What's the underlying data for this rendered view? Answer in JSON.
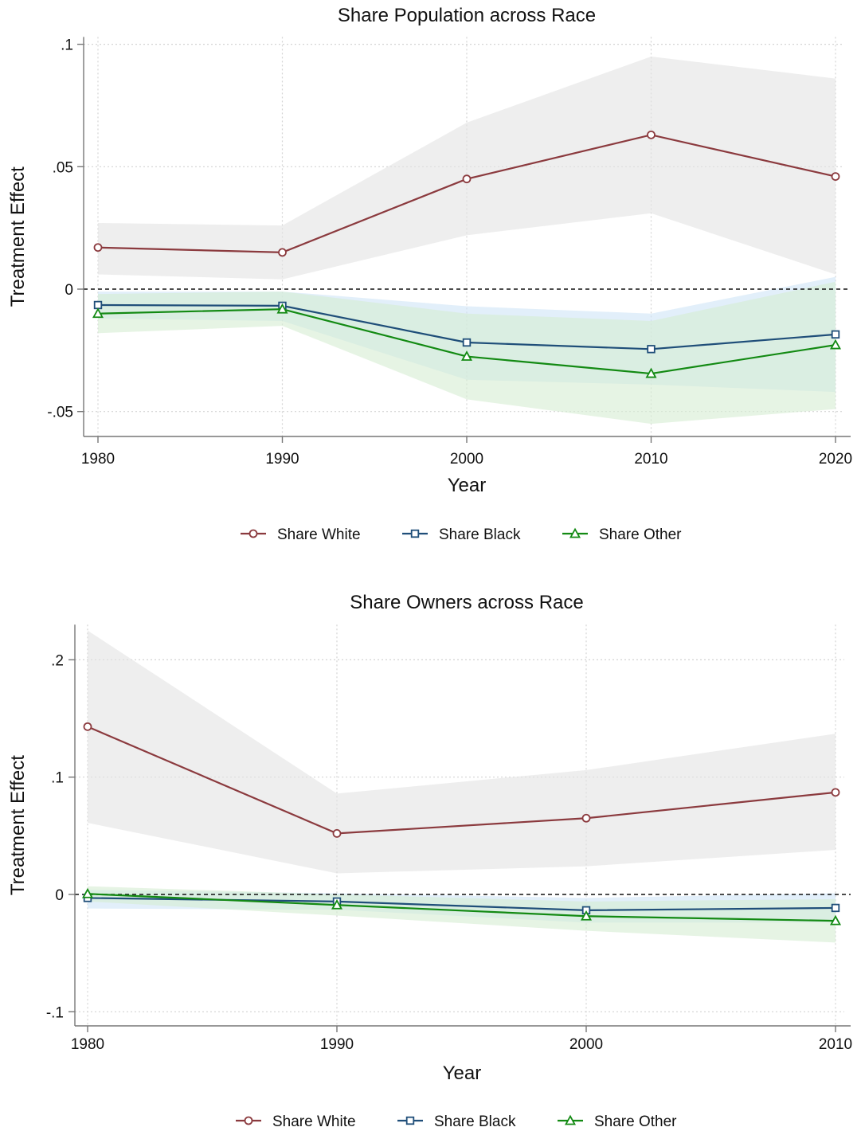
{
  "chart_data": [
    {
      "type": "line",
      "title": "Share Population across Race",
      "xlabel": "Year",
      "ylabel": "Treatment Effect",
      "x": [
        1980,
        1990,
        2000,
        2010,
        2020
      ],
      "x_ticks": [
        "1980",
        "1990",
        "2000",
        "2010",
        "2020"
      ],
      "y_ticks": [
        {
          "value": -0.05,
          "label": "-.05"
        },
        {
          "value": 0,
          "label": "0"
        },
        {
          "value": 0.05,
          "label": ".05"
        },
        {
          "value": 0.1,
          "label": ".1"
        }
      ],
      "ylim": [
        -0.06,
        0.103
      ],
      "grid": true,
      "zero_line": true,
      "legend_position": "bottom",
      "series": [
        {
          "name": "Share White",
          "color": "#8b3a3e",
          "band_color": "#e3e3e3",
          "marker": "circle",
          "values": [
            0.017,
            0.015,
            0.045,
            0.063,
            0.046
          ],
          "ci_low": [
            0.006,
            0.004,
            0.022,
            0.031,
            0.006
          ],
          "ci_high": [
            0.027,
            0.026,
            0.068,
            0.095,
            0.086
          ]
        },
        {
          "name": "Share Black",
          "color": "#1f4e79",
          "band_color": "#cfe4f7",
          "marker": "square",
          "values": [
            -0.0065,
            -0.0068,
            -0.0218,
            -0.0245,
            -0.0185
          ],
          "ci_low": [
            -0.012,
            -0.013,
            -0.037,
            -0.039,
            -0.042
          ],
          "ci_high": [
            -0.001,
            -0.001,
            -0.007,
            -0.01,
            0.005
          ]
        },
        {
          "name": "Share Other",
          "color": "#138a13",
          "band_color": "#d6ecd2",
          "marker": "triangle",
          "values": [
            -0.01,
            -0.0082,
            -0.0275,
            -0.0345,
            -0.0228
          ],
          "ci_low": [
            -0.018,
            -0.015,
            -0.045,
            -0.055,
            -0.049
          ],
          "ci_high": [
            -0.002,
            -0.001,
            -0.01,
            -0.013,
            0.003
          ]
        }
      ]
    },
    {
      "type": "line",
      "title": "Share Owners across Race",
      "xlabel": "Year",
      "ylabel": "Treatment Effect",
      "x": [
        1980,
        1990,
        2000,
        2010
      ],
      "x_ticks": [
        "1980",
        "1990",
        "2000",
        "2010"
      ],
      "y_ticks": [
        {
          "value": -0.1,
          "label": "-.1"
        },
        {
          "value": 0,
          "label": "0"
        },
        {
          "value": 0.1,
          "label": ".1"
        },
        {
          "value": 0.2,
          "label": ".2"
        }
      ],
      "ylim": [
        -0.115,
        0.23
      ],
      "grid": true,
      "zero_line": true,
      "legend_position": "bottom",
      "series": [
        {
          "name": "Share White",
          "color": "#8b3a3e",
          "band_color": "#e3e3e3",
          "marker": "circle",
          "values": [
            0.143,
            0.052,
            0.065,
            0.087
          ],
          "ci_low": [
            0.061,
            0.018,
            0.024,
            0.038
          ],
          "ci_high": [
            0.225,
            0.086,
            0.106,
            0.137
          ]
        },
        {
          "name": "Share Black",
          "color": "#1f4e79",
          "band_color": "#cfe4f7",
          "marker": "square",
          "values": [
            -0.003,
            -0.006,
            -0.0135,
            -0.0115
          ],
          "ci_low": [
            -0.012,
            -0.013,
            -0.024,
            -0.024
          ],
          "ci_high": [
            0.004,
            0.001,
            -0.003,
            0.001
          ]
        },
        {
          "name": "Share Other",
          "color": "#138a13",
          "band_color": "#d6ecd2",
          "marker": "triangle",
          "values": [
            0.0005,
            -0.009,
            -0.0185,
            -0.0225
          ],
          "ci_low": [
            -0.006,
            -0.018,
            -0.031,
            -0.041
          ],
          "ci_high": [
            0.007,
            0.0,
            -0.006,
            -0.004
          ]
        }
      ]
    }
  ]
}
